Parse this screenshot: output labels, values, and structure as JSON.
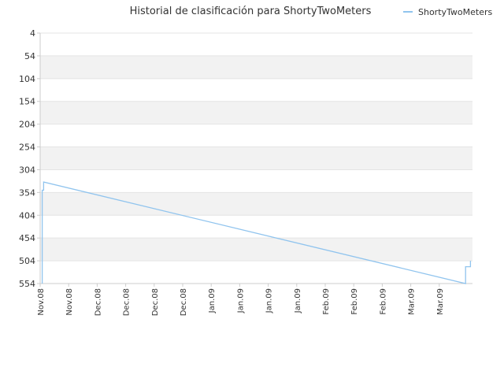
{
  "chart_data": {
    "type": "line",
    "title": "Historial de clasificación para ShortyTwoMeters",
    "xlabel": "",
    "ylabel": "",
    "y_reversed": true,
    "ylim": [
      4,
      554
    ],
    "y_ticks": [
      4,
      54,
      104,
      154,
      204,
      254,
      304,
      354,
      404,
      454,
      504,
      554
    ],
    "x_tick_labels": [
      "Nov.08",
      "Nov.08",
      "Dec.08",
      "Dec.08",
      "Dec.08",
      "Dec.08",
      "Jan.09",
      "Jan.09",
      "Jan.09",
      "Jan.09",
      "Feb.09",
      "Feb.09",
      "Feb.09",
      "Mar.09",
      "Mar.09"
    ],
    "x_range_days": [
      0,
      125
    ],
    "grid": true,
    "legend_position": "top-right",
    "series": [
      {
        "name": "ShortyTwoMeters",
        "color": "#90c4ee",
        "points": [
          {
            "day": 0.6,
            "rank": 554
          },
          {
            "day": 0.6,
            "rank": 349
          },
          {
            "day": 1.0,
            "rank": 349
          },
          {
            "day": 1.0,
            "rank": 331
          },
          {
            "day": 123.0,
            "rank": 554
          },
          {
            "day": 123.0,
            "rank": 517
          },
          {
            "day": 124.4,
            "rank": 517
          },
          {
            "day": 124.4,
            "rank": 504
          }
        ]
      }
    ]
  },
  "colors": {
    "band_light": "#ffffff",
    "band_shaded": "#f2f2f2",
    "grid_line": "#e4e4e4",
    "axis_line": "#cccccc",
    "text": "#333333"
  }
}
